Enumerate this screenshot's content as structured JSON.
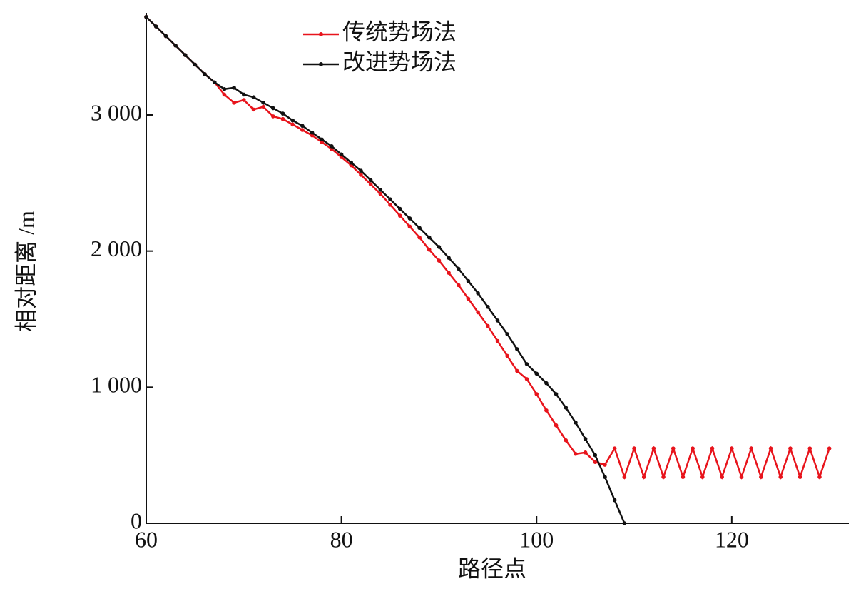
{
  "chart_data": {
    "type": "line",
    "xlabel": "路径点",
    "ylabel": "相对距离 /m",
    "xlim": [
      60,
      132
    ],
    "xticks": [
      60,
      80,
      100,
      120
    ],
    "ylim": [
      0,
      3750
    ],
    "yticks": [
      0,
      {
        "value": 1000,
        "label": "1 000"
      },
      {
        "value": 2000,
        "label": "2 000"
      },
      {
        "value": 3000,
        "label": "3 000"
      }
    ],
    "legend": "top",
    "series": [
      {
        "name": "传统势场法",
        "color": "#e8141c",
        "x": [
          60,
          61,
          62,
          63,
          64,
          65,
          66,
          67,
          68,
          69,
          70,
          71,
          72,
          73,
          74,
          75,
          76,
          77,
          78,
          79,
          80,
          81,
          82,
          83,
          84,
          85,
          86,
          87,
          88,
          89,
          90,
          91,
          92,
          93,
          94,
          95,
          96,
          97,
          98,
          99,
          100,
          101,
          102,
          103,
          104,
          105,
          106,
          107,
          108,
          109,
          110,
          111,
          112,
          113,
          114,
          115,
          116,
          117,
          118,
          119,
          120,
          121,
          122,
          123,
          124,
          125,
          126,
          127,
          128,
          129,
          130
        ],
        "values": [
          3720,
          3650,
          3580,
          3510,
          3440,
          3370,
          3300,
          3240,
          3150,
          3090,
          3110,
          3040,
          3060,
          2990,
          2970,
          2930,
          2890,
          2850,
          2800,
          2750,
          2690,
          2630,
          2560,
          2490,
          2420,
          2340,
          2260,
          2180,
          2100,
          2010,
          1930,
          1840,
          1750,
          1650,
          1550,
          1450,
          1340,
          1230,
          1120,
          1060,
          950,
          830,
          720,
          610,
          510,
          520,
          450,
          430,
          550,
          340,
          550,
          340,
          550,
          340,
          550,
          340,
          550,
          340,
          550,
          340,
          550,
          340,
          550,
          340,
          550,
          340,
          550,
          340,
          550,
          340,
          550
        ]
      },
      {
        "name": "改进势场法",
        "color": "#111111",
        "x": [
          60,
          61,
          62,
          63,
          64,
          65,
          66,
          67,
          68,
          69,
          70,
          71,
          72,
          73,
          74,
          75,
          76,
          77,
          78,
          79,
          80,
          81,
          82,
          83,
          84,
          85,
          86,
          87,
          88,
          89,
          90,
          91,
          92,
          93,
          94,
          95,
          96,
          97,
          98,
          99,
          100,
          101,
          102,
          103,
          104,
          105,
          106,
          107,
          108,
          109
        ],
        "values": [
          3720,
          3650,
          3580,
          3510,
          3440,
          3370,
          3300,
          3240,
          3190,
          3200,
          3150,
          3130,
          3090,
          3050,
          3010,
          2960,
          2920,
          2870,
          2820,
          2770,
          2710,
          2650,
          2590,
          2520,
          2450,
          2380,
          2310,
          2240,
          2170,
          2100,
          2030,
          1950,
          1870,
          1780,
          1690,
          1590,
          1490,
          1390,
          1280,
          1170,
          1100,
          1030,
          950,
          850,
          740,
          620,
          500,
          340,
          170,
          0
        ]
      }
    ]
  }
}
